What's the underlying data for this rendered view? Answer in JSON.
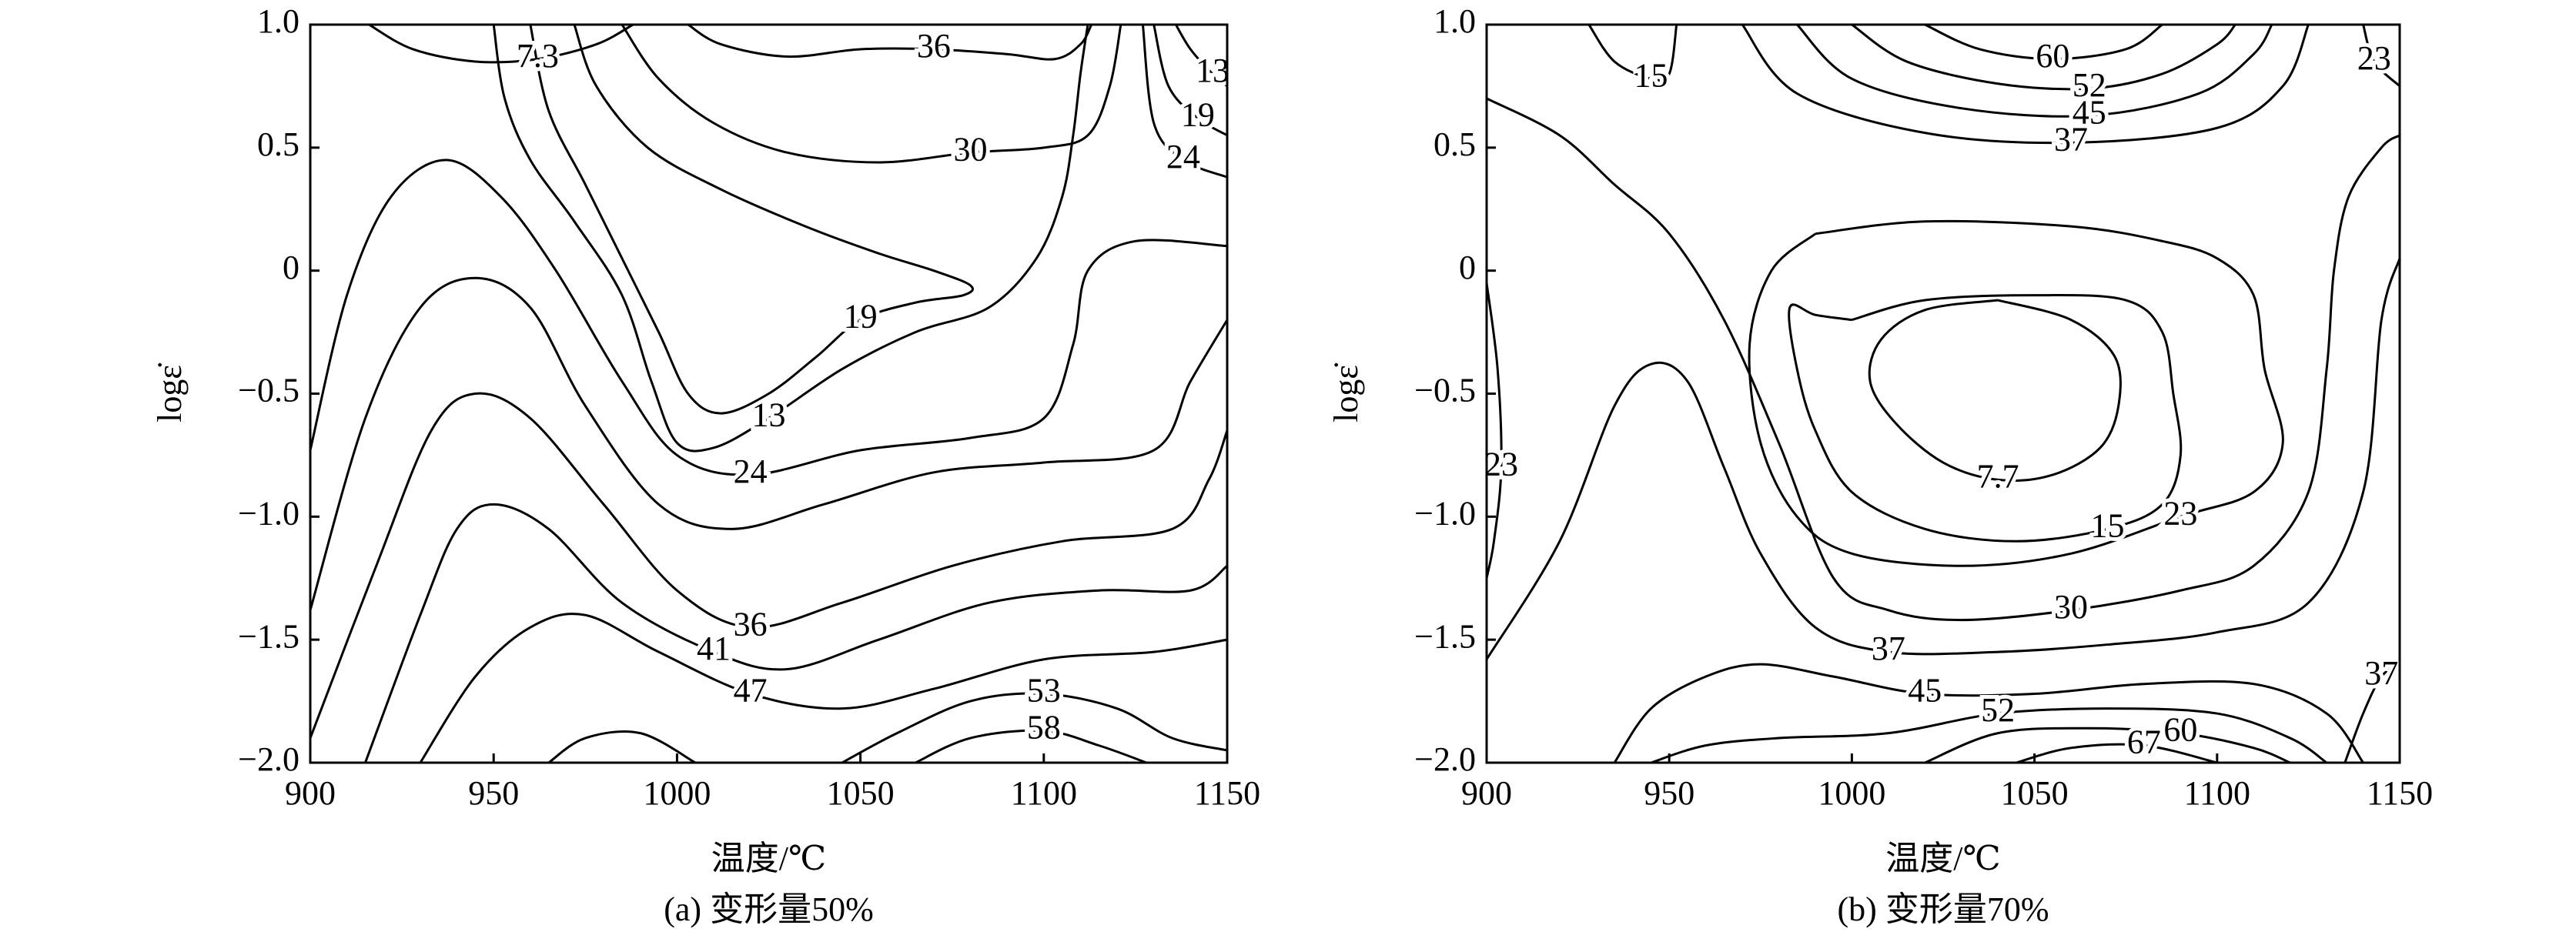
{
  "chart_data": [
    {
      "type": "contour",
      "xlabel": "温度/℃",
      "ylabel": "logε̇",
      "caption": "(a) 变形量50%",
      "color": "#000000",
      "xlim": [
        900,
        1150
      ],
      "ylim": [
        -2,
        1
      ],
      "xticks": [
        900,
        950,
        1000,
        1050,
        1100,
        1150
      ],
      "yticks": [
        {
          "value": 1,
          "label": "1.0"
        },
        0.5,
        0,
        {
          "value": -0.5,
          "label": "−0.5"
        },
        {
          "value": -1,
          "label": "−1.0"
        },
        {
          "value": -1.5,
          "label": "−1.5"
        },
        {
          "value": -2,
          "label": "−2.0"
        }
      ],
      "lines": [
        {
          "level": 7.3,
          "x": [
            916,
            928,
            945,
            962,
            978,
            988
          ],
          "y": [
            1.0,
            0.9,
            0.85,
            0.86,
            0.92,
            1.0
          ]
        },
        {
          "level": 36,
          "x": [
            1003,
            1012,
            1030,
            1050,
            1070,
            1090,
            1103,
            1110,
            1113
          ],
          "y": [
            1.0,
            0.92,
            0.87,
            0.9,
            0.9,
            0.88,
            0.86,
            0.92,
            1.0
          ]
        },
        {
          "level": 30,
          "x": [
            985,
            995,
            1010,
            1030,
            1055,
            1080,
            1100,
            1112,
            1118,
            1121
          ],
          "y": [
            1.0,
            0.78,
            0.6,
            0.48,
            0.44,
            0.48,
            0.5,
            0.55,
            0.75,
            1.0
          ]
        },
        {
          "level": 19,
          "x": [
            972,
            978,
            992,
            1012,
            1035,
            1055,
            1070,
            1080,
            1078,
            1065,
            1050,
            1038,
            1025,
            1012,
            1003,
            995,
            985,
            975,
            965,
            960
          ],
          "y": [
            1.0,
            0.75,
            0.5,
            0.33,
            0.18,
            0.07,
            0.0,
            -0.06,
            -0.1,
            -0.13,
            -0.2,
            -0.35,
            -0.5,
            -0.58,
            -0.5,
            -0.25,
            0.05,
            0.35,
            0.65,
            1.0
          ]
        },
        {
          "level": 13,
          "x": [
            950,
            953,
            960,
            972,
            985,
            993,
            1000,
            1010,
            1025,
            1045,
            1065,
            1085,
            1098,
            1105,
            1108,
            1110,
            1112
          ],
          "y": [
            1.0,
            0.7,
            0.45,
            0.2,
            -0.1,
            -0.45,
            -0.7,
            -0.72,
            -0.6,
            -0.4,
            -0.25,
            -0.15,
            0.05,
            0.3,
            0.55,
            0.8,
            1.0
          ]
        },
        {
          "level": 13,
          "x": [
            1136,
            1140,
            1146,
            1150
          ],
          "y": [
            1.0,
            0.9,
            0.8,
            0.75
          ]
        },
        {
          "level": 19,
          "x": [
            1130,
            1134,
            1142,
            1150
          ],
          "y": [
            1.0,
            0.75,
            0.62,
            0.55
          ]
        },
        {
          "level": 24,
          "x": [
            1127,
            1130,
            1138,
            1150
          ],
          "y": [
            1.0,
            0.6,
            0.45,
            0.38
          ]
        },
        {
          "level": 24,
          "x": [
            900,
            910,
            922,
            937,
            952,
            967,
            985,
            1000,
            1020,
            1050,
            1080,
            1100,
            1108,
            1112,
            1125,
            1150
          ],
          "y": [
            -0.73,
            -0.1,
            0.3,
            0.45,
            0.3,
            0.0,
            -0.45,
            -0.75,
            -0.83,
            -0.73,
            -0.68,
            -0.6,
            -0.3,
            0.0,
            0.12,
            0.1
          ]
        },
        {
          "x": [
            900,
            915,
            930,
            945,
            960,
            975,
            995,
            1015,
            1040,
            1070,
            1100,
            1130,
            1140,
            1150
          ],
          "y": [
            -1.38,
            -0.6,
            -0.15,
            -0.03,
            -0.15,
            -0.55,
            -0.95,
            -1.05,
            -0.95,
            -0.82,
            -0.78,
            -0.73,
            -0.45,
            -0.2
          ]
        },
        {
          "level": 36,
          "x": [
            900,
            918,
            933,
            945,
            960,
            980,
            1000,
            1020,
            1045,
            1075,
            1105,
            1135,
            1145,
            1150
          ],
          "y": [
            -1.9,
            -1.2,
            -0.65,
            -0.5,
            -0.6,
            -0.95,
            -1.3,
            -1.45,
            -1.35,
            -1.2,
            -1.1,
            -1.05,
            -0.85,
            -0.65
          ]
        },
        {
          "level": 41,
          "x": [
            915,
            930,
            940,
            950,
            965,
            985,
            1010,
            1030,
            1055,
            1085,
            1115,
            1140,
            1150
          ],
          "y": [
            -2.0,
            -1.4,
            -1.05,
            -0.95,
            -1.05,
            -1.35,
            -1.55,
            -1.62,
            -1.5,
            -1.35,
            -1.3,
            -1.3,
            -1.2
          ]
        },
        {
          "level": 47,
          "x": [
            930,
            945,
            960,
            975,
            995,
            1020,
            1045,
            1070,
            1100,
            1130,
            1150
          ],
          "y": [
            -2.0,
            -1.65,
            -1.45,
            -1.4,
            -1.55,
            -1.72,
            -1.78,
            -1.7,
            -1.58,
            -1.55,
            -1.5
          ]
        },
        {
          "x": [
            965,
            975,
            990,
            1005
          ],
          "y": [
            -2.0,
            -1.9,
            -1.88,
            -2.0
          ]
        },
        {
          "level": 53,
          "x": [
            1045,
            1060,
            1080,
            1100,
            1120,
            1135,
            1150
          ],
          "y": [
            -2.0,
            -1.88,
            -1.75,
            -1.72,
            -1.78,
            -1.9,
            -1.95
          ]
        },
        {
          "level": 58,
          "x": [
            1065,
            1080,
            1100,
            1115,
            1128
          ],
          "y": [
            -2.0,
            -1.9,
            -1.87,
            -1.93,
            -2.0
          ]
        }
      ]
    },
    {
      "type": "contour",
      "xlabel": "温度/℃",
      "ylabel": "logε̇",
      "caption": "(b) 变形量70%",
      "color": "#000000",
      "xlim": [
        900,
        1150
      ],
      "ylim": [
        -2,
        1
      ],
      "xticks": [
        900,
        950,
        1000,
        1050,
        1100,
        1150
      ],
      "yticks": [
        {
          "value": 1,
          "label": "1.0"
        },
        0.5,
        0,
        {
          "value": -0.5,
          "label": "−0.5"
        },
        {
          "value": -1,
          "label": "−1.0"
        },
        {
          "value": -1.5,
          "label": "−1.5"
        },
        {
          "value": -2,
          "label": "−2.0"
        }
      ],
      "lines": [
        {
          "level": 7.7,
          "x": [
            1040,
            1060,
            1072,
            1073,
            1068,
            1055,
            1040,
            1025,
            1012,
            1005,
            1008,
            1020,
            1040
          ],
          "y": [
            -0.12,
            -0.2,
            -0.35,
            -0.55,
            -0.72,
            -0.83,
            -0.85,
            -0.78,
            -0.62,
            -0.45,
            -0.28,
            -0.16,
            -0.12
          ]
        },
        {
          "level": 15,
          "x": [
            928,
            935,
            945,
            950,
            952
          ],
          "y": [
            1.0,
            0.85,
            0.78,
            0.8,
            1.0
          ]
        },
        {
          "level": 15,
          "x": [
            1000,
            1020,
            1050,
            1075,
            1085,
            1088,
            1090,
            1085,
            1070,
            1045,
            1020,
            1000,
            990,
            985,
            983,
            990,
            1000
          ],
          "y": [
            -0.2,
            -0.12,
            -0.1,
            -0.12,
            -0.25,
            -0.5,
            -0.75,
            -0.95,
            -1.05,
            -1.1,
            -1.05,
            -0.9,
            -0.65,
            -0.4,
            -0.15,
            -0.18,
            -0.2
          ]
        },
        {
          "level": 23,
          "x": [
            990,
            1020,
            1060,
            1085,
            1100,
            1110,
            1113,
            1118,
            1110,
            1090,
            1060,
            1030,
            1000,
            985,
            975,
            972,
            978,
            990
          ],
          "y": [
            0.15,
            0.2,
            0.18,
            0.12,
            0.05,
            -0.1,
            -0.4,
            -0.7,
            -0.9,
            -1.0,
            -1.15,
            -1.2,
            -1.15,
            -1.0,
            -0.7,
            -0.3,
            0.0,
            0.15
          ]
        },
        {
          "level": 23,
          "x": [
            900,
            903,
            904,
            902,
            900
          ],
          "y": [
            -0.05,
            -0.4,
            -0.8,
            -1.1,
            -1.25
          ]
        },
        {
          "level": 23,
          "x": [
            1140,
            1143,
            1150
          ],
          "y": [
            1.0,
            0.85,
            0.75
          ]
        },
        {
          "level": 30,
          "x": [
            900,
            920,
            935,
            950,
            965,
            980,
            995,
            1010,
            1030,
            1060,
            1090,
            1110,
            1125,
            1130,
            1132,
            1136,
            1145,
            1150
          ],
          "y": [
            0.7,
            0.55,
            0.35,
            0.15,
            -0.2,
            -0.7,
            -1.25,
            -1.38,
            -1.42,
            -1.38,
            -1.3,
            -1.2,
            -0.9,
            -0.4,
            0.0,
            0.3,
            0.5,
            0.55
          ]
        },
        {
          "level": 37,
          "x": [
            900,
            920,
            935,
            945,
            955,
            965,
            975,
            990,
            1010,
            1040,
            1070,
            1100,
            1125,
            1140,
            1145,
            1150
          ],
          "y": [
            -1.58,
            -1.1,
            -0.55,
            -0.38,
            -0.45,
            -0.8,
            -1.15,
            -1.45,
            -1.55,
            -1.55,
            -1.52,
            -1.47,
            -1.35,
            -0.9,
            -0.2,
            0.05
          ]
        },
        {
          "level": 37,
          "x": [
            970,
            985,
            1020,
            1060,
            1100,
            1118,
            1125
          ],
          "y": [
            1.0,
            0.72,
            0.56,
            0.52,
            0.58,
            0.75,
            1.0
          ]
        },
        {
          "level": 45,
          "x": [
            985,
            1000,
            1030,
            1065,
            1095,
            1110,
            1115
          ],
          "y": [
            1.0,
            0.78,
            0.66,
            0.63,
            0.72,
            0.88,
            1.0
          ]
        },
        {
          "level": 52,
          "x": [
            1000,
            1015,
            1040,
            1065,
            1085,
            1100,
            1105
          ],
          "y": [
            1.0,
            0.85,
            0.76,
            0.74,
            0.8,
            0.92,
            1.0
          ]
        },
        {
          "level": 60,
          "x": [
            1020,
            1035,
            1055,
            1075,
            1085
          ],
          "y": [
            1.0,
            0.9,
            0.86,
            0.9,
            1.0
          ]
        },
        {
          "level": 37,
          "x": [
            1135,
            1140,
            1145,
            1150
          ],
          "y": [
            -2.0,
            -1.8,
            -1.65,
            -1.6
          ]
        },
        {
          "level": 45,
          "x": [
            935,
            945,
            960,
            975,
            995,
            1020,
            1050,
            1080,
            1110,
            1130,
            1140
          ],
          "y": [
            -2.0,
            -1.78,
            -1.65,
            -1.6,
            -1.65,
            -1.72,
            -1.72,
            -1.68,
            -1.68,
            -1.8,
            -2.0
          ]
        },
        {
          "level": 52,
          "x": [
            945,
            960,
            980,
            1010,
            1040,
            1070,
            1100,
            1120,
            1130
          ],
          "y": [
            -2.0,
            -1.93,
            -1.9,
            -1.88,
            -1.8,
            -1.78,
            -1.8,
            -1.9,
            -2.0
          ]
        },
        {
          "level": 60,
          "x": [
            1020,
            1040,
            1065,
            1090,
            1110,
            1120
          ],
          "y": [
            -2.0,
            -1.88,
            -1.86,
            -1.88,
            -1.94,
            -2.0
          ]
        },
        {
          "level": 67,
          "x": [
            1045,
            1060,
            1080,
            1100
          ],
          "y": [
            -2.0,
            -1.94,
            -1.93,
            -2.0
          ]
        }
      ]
    }
  ]
}
